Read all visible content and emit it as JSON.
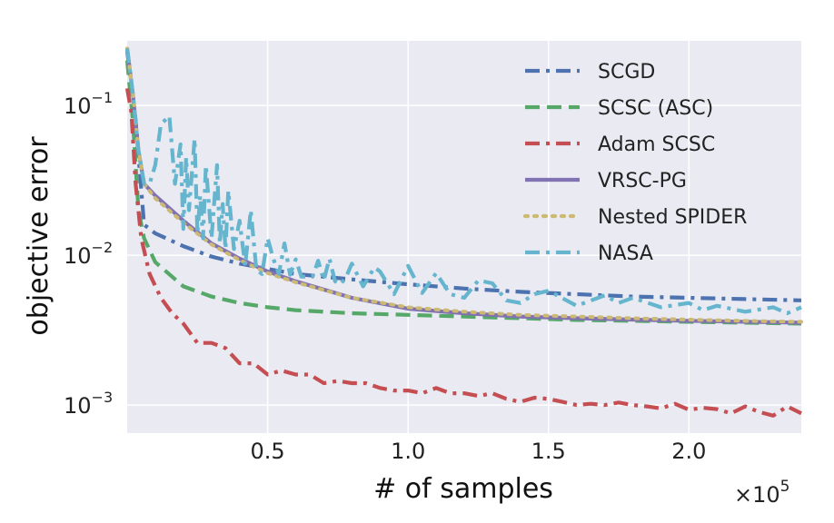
{
  "chart_data": {
    "type": "line",
    "xlabel": "# of samples",
    "ylabel": "objective error",
    "x_multiplier_label": "×10",
    "x_multiplier_exp": "5",
    "xlim": [
      0,
      240000
    ],
    "ylim": [
      0.00065,
      0.27
    ],
    "yscale": "log",
    "grid": true,
    "legend_position": "top-right",
    "x_ticks": [
      {
        "value": 50000,
        "label": "0.5"
      },
      {
        "value": 100000,
        "label": "1.0"
      },
      {
        "value": 150000,
        "label": "1.5"
      },
      {
        "value": 200000,
        "label": "2.0"
      }
    ],
    "y_ticks": [
      {
        "value": 0.1,
        "base": "10",
        "exp": "−1"
      },
      {
        "value": 0.01,
        "base": "10",
        "exp": "−2"
      },
      {
        "value": 0.001,
        "base": "10",
        "exp": "−3"
      }
    ],
    "series": [
      {
        "name": "SCGD",
        "color": "#4c72b0",
        "dash": "dashdot",
        "x": [
          0,
          3000,
          6000,
          10000,
          20000,
          30000,
          40000,
          50000,
          60000,
          80000,
          100000,
          120000,
          140000,
          160000,
          180000,
          200000,
          220000,
          240000
        ],
        "y": [
          0.23,
          0.08,
          0.016,
          0.014,
          0.0115,
          0.0098,
          0.0088,
          0.0081,
          0.0075,
          0.0069,
          0.0064,
          0.006,
          0.0057,
          0.0055,
          0.0053,
          0.0052,
          0.0051,
          0.005
        ]
      },
      {
        "name": "SCSC (ASC)",
        "color": "#55a868",
        "dash": "dashed",
        "x": [
          0,
          2000,
          4000,
          6000,
          10000,
          20000,
          30000,
          40000,
          50000,
          60000,
          80000,
          100000,
          120000,
          140000,
          160000,
          180000,
          200000,
          220000,
          240000
        ],
        "y": [
          0.2,
          0.08,
          0.02,
          0.013,
          0.009,
          0.0062,
          0.0053,
          0.0048,
          0.0045,
          0.0043,
          0.0041,
          0.004,
          0.0039,
          0.0038,
          0.0037,
          0.00365,
          0.0036,
          0.00355,
          0.0035
        ]
      },
      {
        "name": "Adam SCSC",
        "color": "#c44e52",
        "dash": "dashdot",
        "x": [
          0,
          1500,
          3000,
          5000,
          8000,
          12000,
          16000,
          20000,
          25000,
          30000,
          35000,
          40000,
          45000,
          50000,
          55000,
          60000,
          65000,
          70000,
          75000,
          80000,
          85000,
          90000,
          95000,
          100000,
          105000,
          110000,
          115000,
          120000,
          125000,
          130000,
          135000,
          140000,
          145000,
          150000,
          155000,
          160000,
          165000,
          170000,
          175000,
          180000,
          185000,
          190000,
          195000,
          200000,
          205000,
          210000,
          215000,
          220000,
          225000,
          230000,
          235000,
          240000
        ],
        "y": [
          0.13,
          0.09,
          0.03,
          0.013,
          0.0075,
          0.0052,
          0.0041,
          0.0035,
          0.0026,
          0.0026,
          0.0024,
          0.0019,
          0.0019,
          0.0016,
          0.0017,
          0.0016,
          0.0016,
          0.0014,
          0.00145,
          0.0014,
          0.0014,
          0.0013,
          0.00125,
          0.00125,
          0.0012,
          0.0013,
          0.0012,
          0.0012,
          0.00115,
          0.0012,
          0.0011,
          0.00105,
          0.00112,
          0.0011,
          0.00105,
          0.001,
          0.00102,
          0.001,
          0.00104,
          0.001,
          0.00098,
          0.00095,
          0.00102,
          0.00093,
          0.00096,
          0.00094,
          0.00088,
          0.00098,
          0.0009,
          0.00085,
          0.00098,
          0.00088
        ]
      },
      {
        "name": "VRSC-PG",
        "color": "#8172b2",
        "dash": "solid",
        "x": [
          0,
          2000,
          4000,
          6000,
          10000,
          20000,
          30000,
          40000,
          50000,
          60000,
          80000,
          100000,
          120000,
          140000,
          160000,
          180000,
          200000,
          220000,
          240000
        ],
        "y": [
          0.24,
          0.12,
          0.05,
          0.03,
          0.025,
          0.017,
          0.012,
          0.0095,
          0.0078,
          0.0067,
          0.0052,
          0.0044,
          0.0041,
          0.0039,
          0.0038,
          0.00372,
          0.00365,
          0.0036,
          0.00355
        ]
      },
      {
        "name": "Nested SPIDER",
        "color": "#ccb974",
        "dash": "dotted",
        "x": [
          0,
          2000,
          4000,
          6000,
          10000,
          20000,
          30000,
          40000,
          50000,
          60000,
          80000,
          100000,
          120000,
          140000,
          160000,
          180000,
          200000,
          220000,
          240000
        ],
        "y": [
          0.24,
          0.12,
          0.05,
          0.03,
          0.024,
          0.0165,
          0.0118,
          0.0093,
          0.0076,
          0.0066,
          0.0052,
          0.0045,
          0.0042,
          0.004,
          0.0039,
          0.0038,
          0.00372,
          0.00365,
          0.0036
        ]
      },
      {
        "name": "NASA",
        "color": "#64b5cd",
        "dash": "dashdot",
        "x": [
          0,
          2000,
          4000,
          6000,
          8000,
          10000,
          12000,
          15000,
          17000,
          19000,
          20000,
          21000,
          22000,
          24000,
          25000,
          26000,
          27000,
          28000,
          30000,
          32000,
          33000,
          34000,
          35000,
          36000,
          38000,
          40000,
          42000,
          44000,
          46000,
          48000,
          50000,
          52000,
          54000,
          56000,
          58000,
          60000,
          62000,
          64000,
          66000,
          68000,
          70000,
          72000,
          74000,
          76000,
          78000,
          80000,
          84000,
          88000,
          90000,
          95000,
          100000,
          105000,
          110000,
          115000,
          120000,
          125000,
          130000,
          135000,
          140000,
          145000,
          150000,
          160000,
          170000,
          175000,
          180000,
          190000,
          200000,
          205000,
          210000,
          220000,
          230000,
          235000,
          240000
        ],
        "y": [
          0.24,
          0.12,
          0.05,
          0.03,
          0.03,
          0.04,
          0.075,
          0.085,
          0.03,
          0.055,
          0.015,
          0.045,
          0.02,
          0.06,
          0.014,
          0.025,
          0.013,
          0.04,
          0.013,
          0.04,
          0.012,
          0.022,
          0.011,
          0.027,
          0.011,
          0.017,
          0.0085,
          0.02,
          0.008,
          0.0075,
          0.013,
          0.0095,
          0.0075,
          0.012,
          0.0074,
          0.0094,
          0.0072,
          0.0072,
          0.0072,
          0.0092,
          0.0068,
          0.0095,
          0.0067,
          0.0064,
          0.0072,
          0.0088,
          0.0062,
          0.0083,
          0.0078,
          0.0055,
          0.0085,
          0.0056,
          0.0076,
          0.0055,
          0.0052,
          0.0068,
          0.0065,
          0.005,
          0.0048,
          0.0055,
          0.0058,
          0.0046,
          0.0054,
          0.0048,
          0.0052,
          0.0045,
          0.0048,
          0.0043,
          0.0046,
          0.0042,
          0.0045,
          0.0041,
          0.0045
        ]
      }
    ]
  }
}
